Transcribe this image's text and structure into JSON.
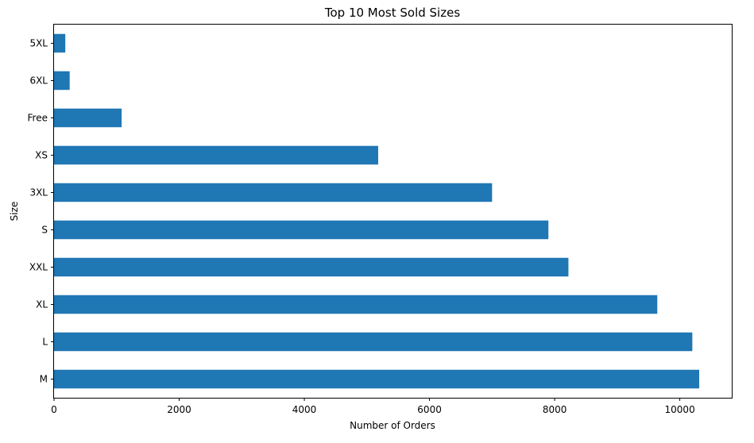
{
  "chart_data": {
    "type": "bar",
    "orientation": "horizontal",
    "title": "Top 10 Most Sold Sizes",
    "xlabel": "Number of Orders",
    "ylabel": "Size",
    "categories": [
      "M",
      "L",
      "XL",
      "XXL",
      "S",
      "3XL",
      "XS",
      "Free",
      "6XL",
      "5XL"
    ],
    "values": [
      10310,
      10200,
      9640,
      8220,
      7900,
      7000,
      5180,
      1080,
      250,
      180
    ],
    "xticks": [
      0,
      2000,
      4000,
      6000,
      8000,
      10000
    ],
    "xlim": [
      0,
      10830
    ],
    "grid": false,
    "bar_color": "#1f77b4"
  }
}
